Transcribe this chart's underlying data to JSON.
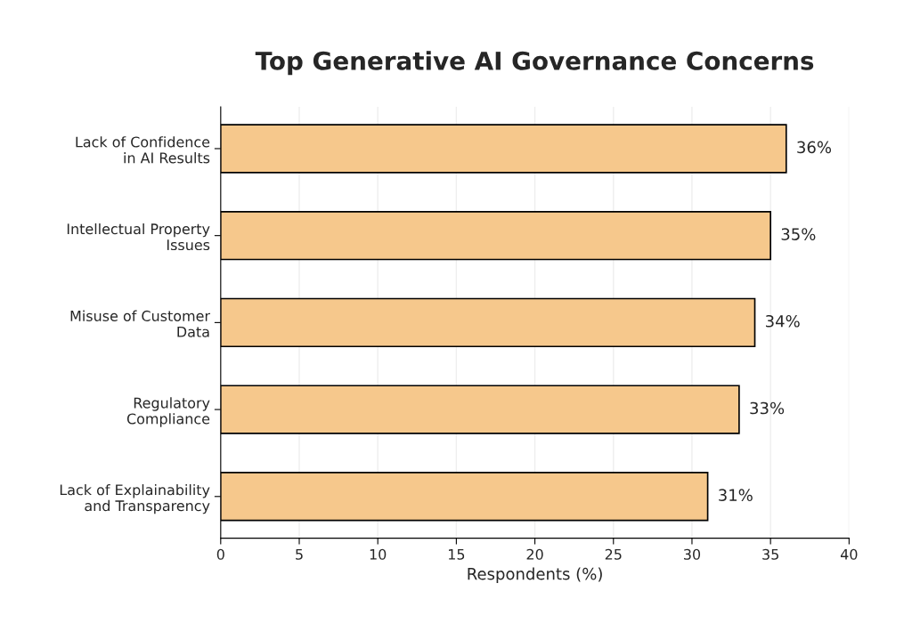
{
  "chart_data": {
    "type": "bar",
    "orientation": "horizontal",
    "title": "Top Generative AI Governance Concerns",
    "xlabel": "Respondents (%)",
    "categories": [
      "Lack of Confidence\nin AI Results",
      "Intellectual Property\nIssues",
      "Misuse of Customer\nData",
      "Regulatory\nCompliance",
      "Lack of Explainability\nand Transparency"
    ],
    "values": [
      36,
      35,
      34,
      33,
      31
    ],
    "value_labels": [
      "36%",
      "35%",
      "34%",
      "33%",
      "31%"
    ],
    "color": "#f6c88c",
    "xlim": [
      0,
      40
    ],
    "xticks": [
      0,
      5,
      10,
      15,
      20,
      25,
      30,
      35,
      40
    ],
    "grid": "x",
    "legend": false
  }
}
